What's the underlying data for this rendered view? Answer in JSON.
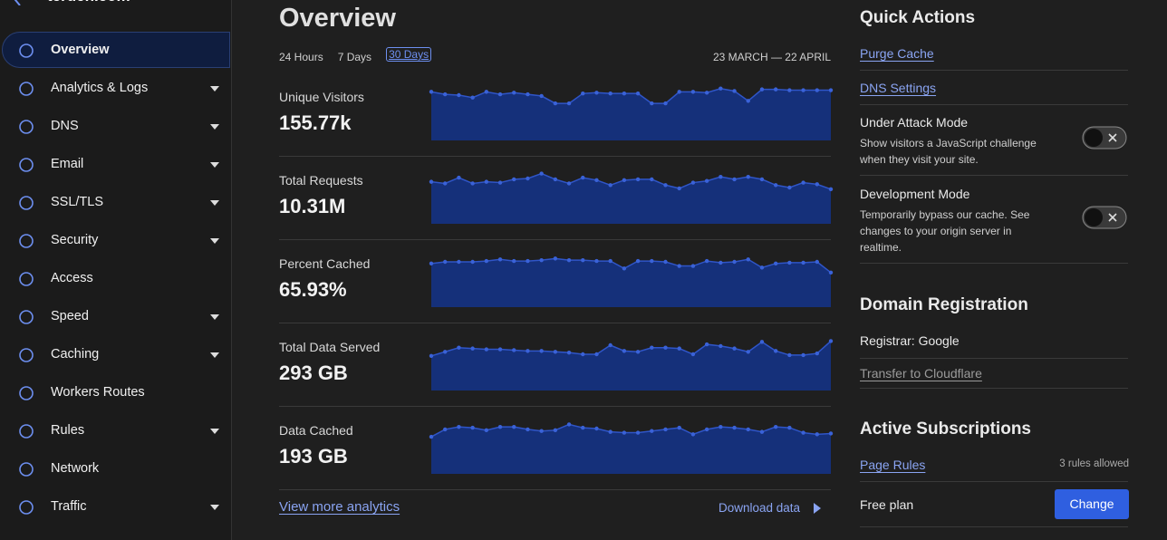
{
  "sidebar": {
    "site": "teruen.com",
    "items": [
      {
        "label": "Overview",
        "dropdown": false,
        "active": true
      },
      {
        "label": "Analytics & Logs",
        "dropdown": true
      },
      {
        "label": "DNS",
        "dropdown": true
      },
      {
        "label": "Email",
        "dropdown": true
      },
      {
        "label": "SSL/TLS",
        "dropdown": true
      },
      {
        "label": "Security",
        "dropdown": true
      },
      {
        "label": "Access",
        "dropdown": false
      },
      {
        "label": "Speed",
        "dropdown": true
      },
      {
        "label": "Caching",
        "dropdown": true
      },
      {
        "label": "Workers Routes",
        "dropdown": false
      },
      {
        "label": "Rules",
        "dropdown": true
      },
      {
        "label": "Network",
        "dropdown": false
      },
      {
        "label": "Traffic",
        "dropdown": true
      }
    ]
  },
  "overview": {
    "title": "Overview",
    "ranges": [
      "24 Hours",
      "7 Days",
      "30 Days"
    ],
    "selected_range": 2,
    "date_range": "23 MARCH — 22 APRIL",
    "metrics": [
      {
        "label": "Unique Visitors",
        "value": "155.77k",
        "trend": [
          59,
          56,
          55,
          52,
          59,
          56,
          58,
          56,
          54,
          45,
          45,
          57,
          58,
          57,
          57,
          57,
          45,
          45,
          59,
          59,
          58,
          63,
          60,
          48,
          62,
          62,
          61,
          61,
          61,
          61
        ]
      },
      {
        "label": "Total Requests",
        "value": "10.31M",
        "trend": [
          51,
          49,
          56,
          49,
          51,
          50,
          54,
          55,
          61,
          54,
          49,
          56,
          53,
          47,
          53,
          54,
          54,
          47,
          43,
          50,
          52,
          57,
          54,
          57,
          54,
          47,
          44,
          50,
          48,
          42
        ]
      },
      {
        "label": "Percent Cached",
        "value": "65.93%",
        "trend": [
          53,
          55,
          55,
          55,
          56,
          58,
          56,
          56,
          57,
          59,
          57,
          57,
          56,
          56,
          47,
          56,
          56,
          55,
          50,
          50,
          56,
          54,
          55,
          58,
          48,
          53,
          54,
          54,
          55,
          42
        ]
      },
      {
        "label": "Total Data Served",
        "value": "293 GB",
        "trend": [
          42,
          47,
          52,
          51,
          50,
          50,
          49,
          48,
          48,
          47,
          46,
          44,
          44,
          55,
          48,
          47,
          52,
          52,
          51,
          44,
          56,
          54,
          51,
          47,
          59,
          48,
          43,
          43,
          45,
          60
        ]
      },
      {
        "label": "Data Cached",
        "value": "193 GB",
        "trend": [
          45,
          54,
          57,
          56,
          53,
          57,
          57,
          54,
          52,
          53,
          60,
          56,
          55,
          51,
          50,
          50,
          52,
          54,
          56,
          48,
          54,
          57,
          56,
          54,
          51,
          57,
          56,
          50,
          48,
          49
        ]
      }
    ],
    "view_more": "View more analytics",
    "download": "Download data"
  },
  "quick_actions": {
    "title": "Quick Actions",
    "links": [
      "Purge Cache",
      "DNS Settings"
    ],
    "toggles": [
      {
        "title": "Under Attack Mode",
        "description": [
          "Show visitors a JavaScript challenge",
          "when they visit your site."
        ]
      },
      {
        "title": "Development Mode",
        "description": [
          "Temporarily bypass our cache. See",
          "changes to your origin server in",
          "realtime."
        ]
      }
    ]
  },
  "domain_registration": {
    "title": "Domain Registration",
    "registrar": "Registrar: Google",
    "transfer": "Transfer to Cloudflare"
  },
  "subscriptions": {
    "title": "Active Subscriptions",
    "page_rules": "Page Rules",
    "page_rules_note": "3 rules allowed",
    "plan": "Free plan",
    "button": "Change"
  }
}
